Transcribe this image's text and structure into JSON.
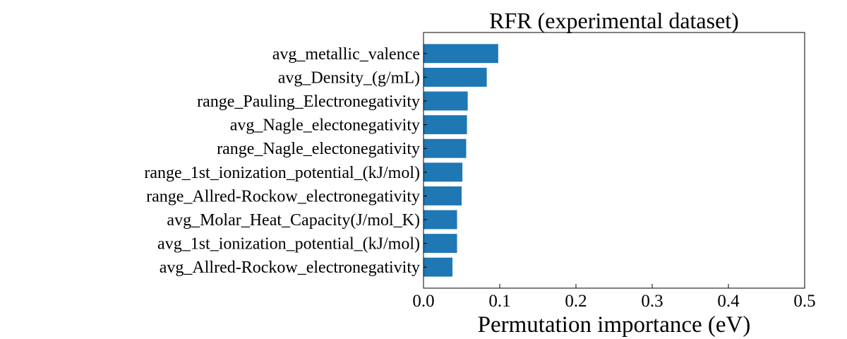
{
  "chart_data": {
    "type": "bar",
    "orientation": "horizontal",
    "title": "RFR (experimental dataset)",
    "xlabel": "Permutation importance (eV)",
    "ylabel": "",
    "xlim": [
      0.0,
      0.5
    ],
    "xticks": [
      "0.0",
      "0.1",
      "0.2",
      "0.3",
      "0.4",
      "0.5"
    ],
    "grid": false,
    "bar_color": "#1f77b4",
    "categories": [
      "avg_metallic_valence",
      "avg_Density_(g/mL)",
      "range_Pauling_Electronegativity",
      "avg_Nagle_electonegativity",
      "range_Nagle_electonegativity",
      "range_1st_ionization_potential_(kJ/mol)",
      "range_Allred-Rockow_electronegativity",
      "avg_Molar_Heat_Capacity(J/mol_K)",
      "avg_1st_ionization_potential_(kJ/mol)",
      "avg_Allred-Rockow_electronegativity"
    ],
    "values": [
      0.098,
      0.083,
      0.058,
      0.057,
      0.056,
      0.051,
      0.05,
      0.044,
      0.044,
      0.038
    ]
  }
}
